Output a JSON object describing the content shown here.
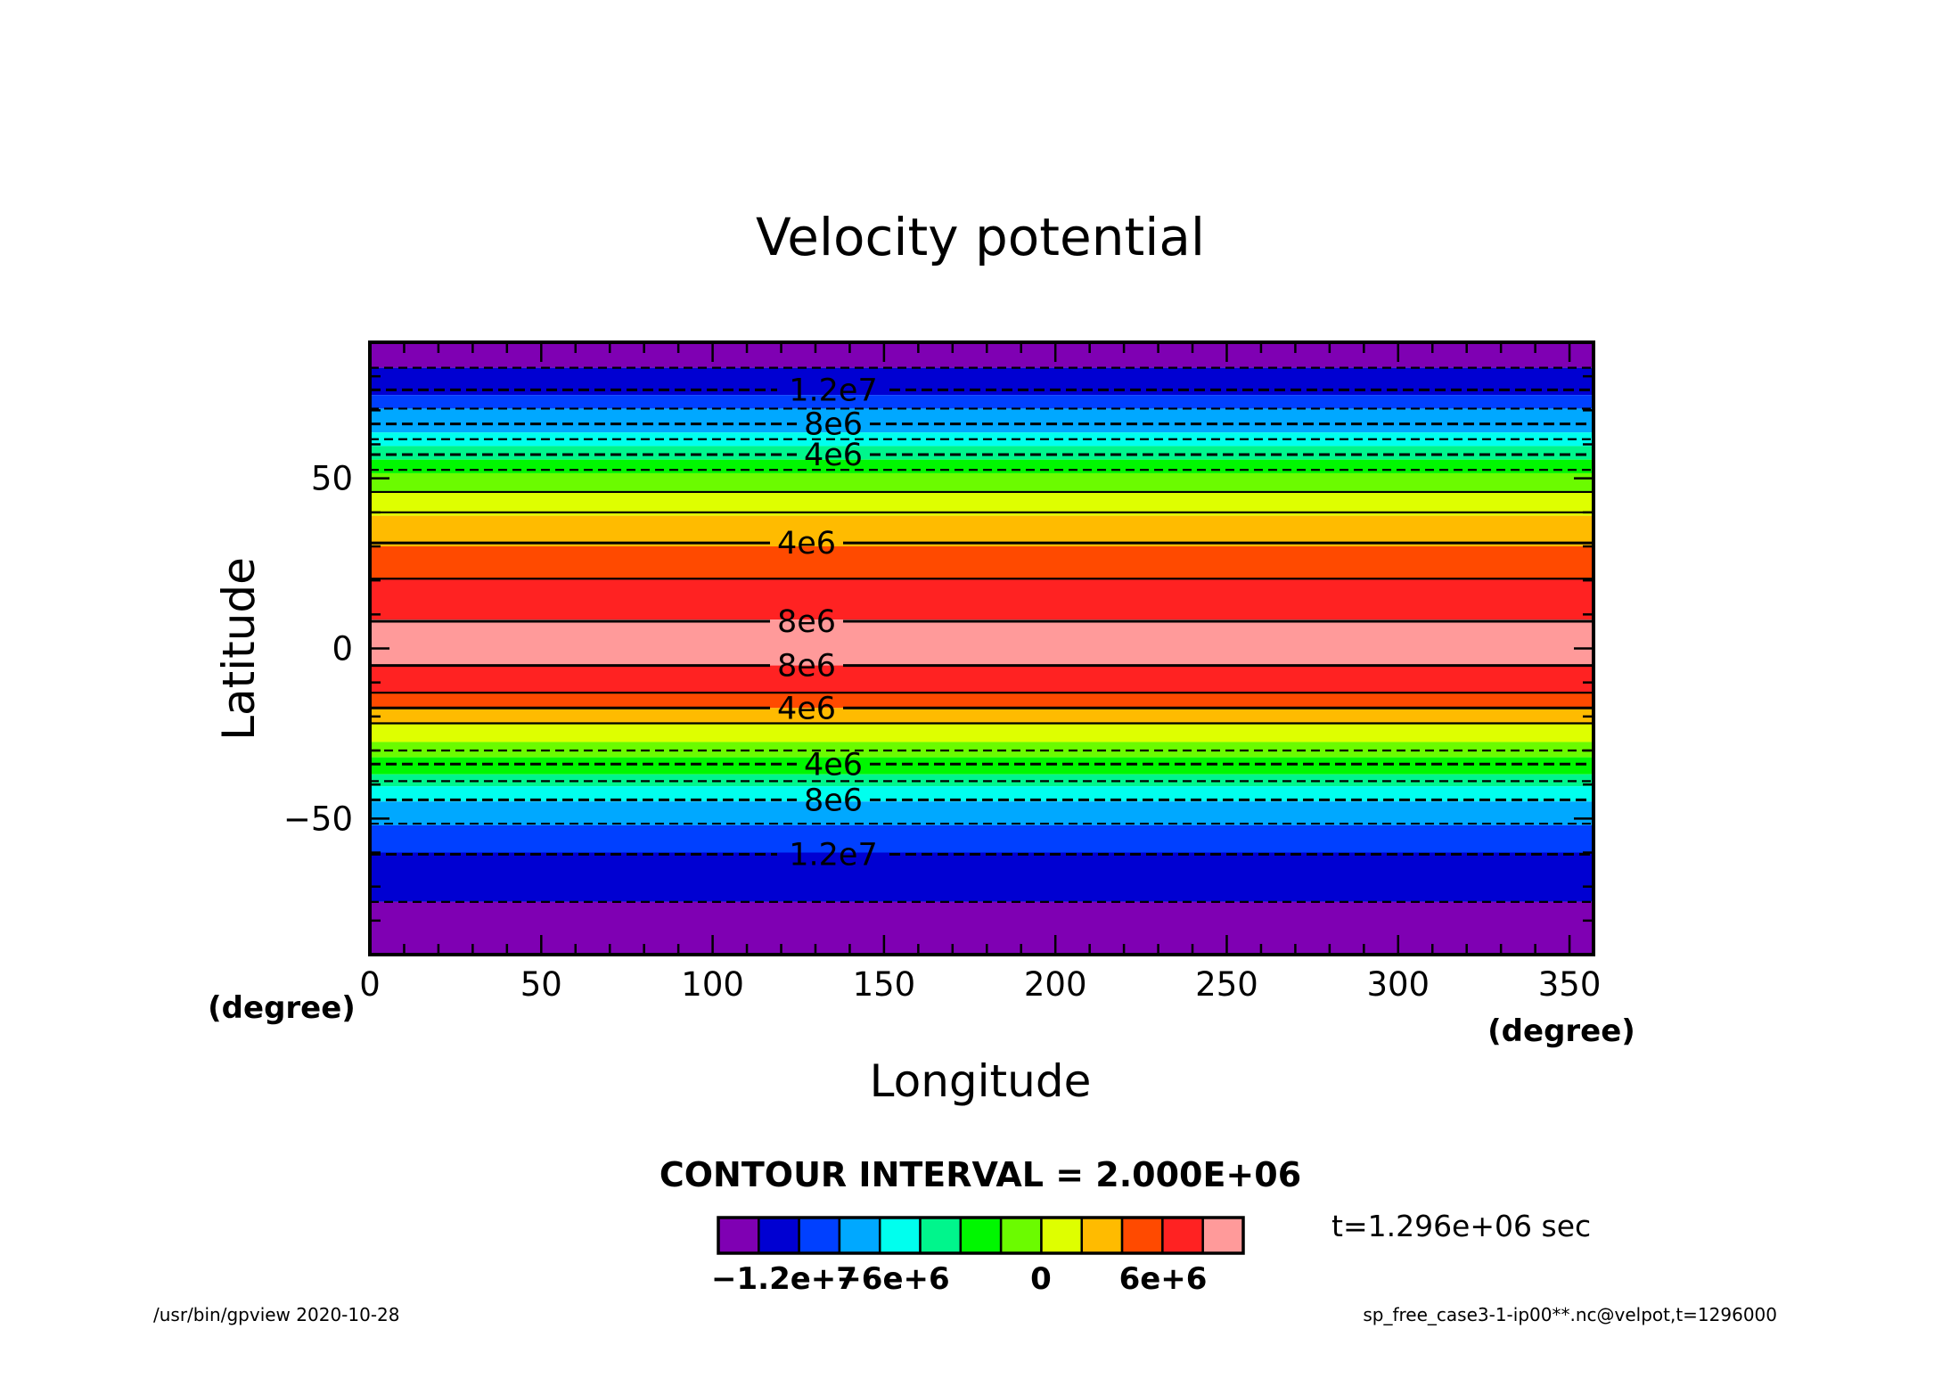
{
  "chart_data": {
    "type": "heatmap",
    "title": "Velocity potential",
    "xlabel": "Longitude",
    "ylabel": "Latitude",
    "x_unit": "(degree)",
    "y_unit": "(degree)",
    "xlim": [
      0,
      357
    ],
    "ylim": [
      -90,
      90
    ],
    "x_ticks": [
      0,
      50,
      100,
      150,
      200,
      250,
      300,
      350
    ],
    "x_tick_labels": [
      "0",
      "50",
      "100",
      "150",
      "200",
      "250",
      "300",
      "350"
    ],
    "y_ticks": [
      -50,
      0,
      50
    ],
    "y_tick_labels": [
      "−50",
      "0",
      "50"
    ],
    "contour_interval_text": "CONTOUR INTERVAL = 2.000E+06",
    "time_text": "t=1.296e+06 sec",
    "colorbar": {
      "colors": [
        "#7f00b3",
        "#0000d2",
        "#0040ff",
        "#00a8ff",
        "#00ffee",
        "#00f58c",
        "#00f700",
        "#6bfb00",
        "#deff00",
        "#ffbb00",
        "#ff4a00",
        "#ff2222",
        "#ff9a9a"
      ],
      "tick_labels": [
        "−1.2e+7",
        "−6e+6",
        "0",
        "6e+6"
      ]
    },
    "bands": [
      {
        "lat_min": 82.5,
        "lat_max": 90,
        "value": -14000000.0,
        "color": "#7f00b3"
      },
      {
        "lat_min": 74.5,
        "lat_max": 82.5,
        "value": -13000000.0,
        "color": "#0000d2"
      },
      {
        "lat_min": 70.5,
        "lat_max": 74.5,
        "value": -11000000.0,
        "color": "#0040ff"
      },
      {
        "lat_min": 63.5,
        "lat_max": 70.5,
        "value": -9000000.0,
        "color": "#00a8ff"
      },
      {
        "lat_min": 59.5,
        "lat_max": 63.5,
        "value": -7000000.0,
        "color": "#00ffee"
      },
      {
        "lat_min": 55.5,
        "lat_max": 59.5,
        "value": -5000000.0,
        "color": "#00f58c"
      },
      {
        "lat_min": 51.5,
        "lat_max": 55.5,
        "value": -3000000.0,
        "color": "#00f700"
      },
      {
        "lat_min": 46,
        "lat_max": 51.5,
        "value": -1000000.0,
        "color": "#6bfb00"
      },
      {
        "lat_min": 39,
        "lat_max": 46,
        "value": 1000000.0,
        "color": "#deff00"
      },
      {
        "lat_min": 30,
        "lat_max": 39,
        "value": 3000000.0,
        "color": "#ffbb00"
      },
      {
        "lat_min": 20.5,
        "lat_max": 30,
        "value": 5000000.0,
        "color": "#ff4a00"
      },
      {
        "lat_min": 8.5,
        "lat_max": 20.5,
        "value": 7000000.0,
        "color": "#ff2222"
      },
      {
        "lat_min": -5,
        "lat_max": 8.5,
        "value": 9000000.0,
        "color": "#ff9a9a"
      },
      {
        "lat_min": -13,
        "lat_max": -5,
        "value": 7000000.0,
        "color": "#ff2222"
      },
      {
        "lat_min": -17.5,
        "lat_max": -13,
        "value": 5000000.0,
        "color": "#ff4a00"
      },
      {
        "lat_min": -22,
        "lat_max": -17.5,
        "value": 3000000.0,
        "color": "#ffbb00"
      },
      {
        "lat_min": -27.5,
        "lat_max": -22,
        "value": 1000000.0,
        "color": "#deff00"
      },
      {
        "lat_min": -32,
        "lat_max": -27.5,
        "value": -1000000.0,
        "color": "#6bfb00"
      },
      {
        "lat_min": -37,
        "lat_max": -32,
        "value": -3000000.0,
        "color": "#00f700"
      },
      {
        "lat_min": -40.5,
        "lat_max": -37,
        "value": -5000000.0,
        "color": "#00f58c"
      },
      {
        "lat_min": -45,
        "lat_max": -40.5,
        "value": -7000000.0,
        "color": "#00ffee"
      },
      {
        "lat_min": -52,
        "lat_max": -45,
        "value": -9000000.0,
        "color": "#00a8ff"
      },
      {
        "lat_min": -60,
        "lat_max": -52,
        "value": -11000000.0,
        "color": "#0040ff"
      },
      {
        "lat_min": -74.5,
        "lat_max": -60,
        "value": -13000000.0,
        "color": "#0000d2"
      },
      {
        "lat_min": -90,
        "lat_max": -74.5,
        "value": -14000000.0,
        "color": "#7f00b3"
      }
    ],
    "contours": [
      {
        "lat": 82.5,
        "dashed": true,
        "label": ""
      },
      {
        "lat": 76,
        "dashed": true,
        "label": "1.2e7"
      },
      {
        "lat": 70.5,
        "dashed": true,
        "label": ""
      },
      {
        "lat": 66,
        "dashed": true,
        "label": "8e6"
      },
      {
        "lat": 61.5,
        "dashed": true,
        "label": ""
      },
      {
        "lat": 57,
        "dashed": true,
        "label": "4e6"
      },
      {
        "lat": 52.5,
        "dashed": true,
        "label": ""
      },
      {
        "lat": 46,
        "dashed": false,
        "label": ""
      },
      {
        "lat": 40,
        "dashed": false,
        "label": ""
      },
      {
        "lat": 31,
        "dashed": false,
        "label": "4e6"
      },
      {
        "lat": 20.5,
        "dashed": false,
        "label": ""
      },
      {
        "lat": 8,
        "dashed": false,
        "label": "8e6"
      },
      {
        "lat": -5,
        "dashed": false,
        "label": "8e6"
      },
      {
        "lat": -13,
        "dashed": false,
        "label": ""
      },
      {
        "lat": -17.5,
        "dashed": false,
        "label": "4e6"
      },
      {
        "lat": -22,
        "dashed": false,
        "label": ""
      },
      {
        "lat": -30,
        "dashed": true,
        "label": ""
      },
      {
        "lat": -34,
        "dashed": true,
        "label": "4e6"
      },
      {
        "lat": -39,
        "dashed": true,
        "label": ""
      },
      {
        "lat": -44.5,
        "dashed": true,
        "label": "8e6"
      },
      {
        "lat": -51.5,
        "dashed": true,
        "label": ""
      },
      {
        "lat": -60.5,
        "dashed": true,
        "label": "1.2e7"
      },
      {
        "lat": -74.5,
        "dashed": true,
        "label": ""
      }
    ]
  },
  "footer": {
    "left": "/usr/bin/gpview   2020-10-28",
    "right": "sp_free_case3-1-ip00**.nc@velpot,t=1296000"
  }
}
